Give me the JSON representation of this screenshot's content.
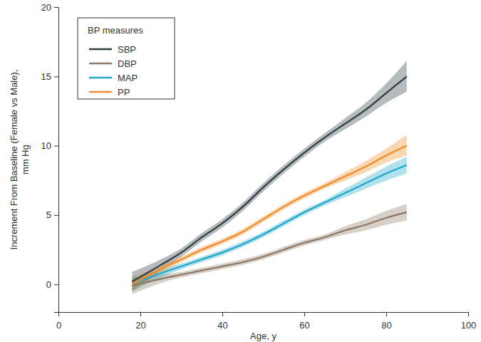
{
  "chart_data": {
    "type": "line",
    "xlabel": "Age, y",
    "ylabel": [
      "Increment From Baseline (Female vs Male),",
      "mm Hg"
    ],
    "legend_title": "BP measures",
    "legend": "upper left",
    "grid": false,
    "x": [
      18,
      25,
      30,
      35,
      40,
      45,
      50,
      55,
      60,
      65,
      70,
      75,
      80,
      85
    ],
    "series": [
      {
        "name": "SBP",
        "color": "#2d3d44",
        "values": [
          0.2,
          1.4,
          2.3,
          3.4,
          4.4,
          5.6,
          7.0,
          8.3,
          9.5,
          10.6,
          11.6,
          12.6,
          13.8,
          15.0
        ],
        "lower": [
          -0.5,
          1.0,
          2.0,
          3.1,
          4.1,
          5.3,
          6.7,
          8.0,
          9.2,
          10.3,
          11.2,
          12.1,
          13.1,
          13.9
        ],
        "upper": [
          0.9,
          1.8,
          2.6,
          3.7,
          4.7,
          5.9,
          7.3,
          8.6,
          9.8,
          10.9,
          12.0,
          13.1,
          14.5,
          16.1
        ]
      },
      {
        "name": "DBP",
        "color": "#8b7763",
        "values": [
          -0.1,
          0.4,
          0.7,
          1.0,
          1.3,
          1.6,
          2.0,
          2.5,
          3.0,
          3.4,
          3.9,
          4.3,
          4.8,
          5.2
        ],
        "lower": [
          -0.7,
          0.1,
          0.5,
          0.8,
          1.1,
          1.4,
          1.8,
          2.3,
          2.8,
          3.2,
          3.6,
          3.9,
          4.3,
          4.6
        ],
        "upper": [
          0.5,
          0.7,
          0.9,
          1.2,
          1.5,
          1.8,
          2.2,
          2.7,
          3.2,
          3.6,
          4.2,
          4.7,
          5.3,
          5.8
        ]
      },
      {
        "name": "MAP",
        "color": "#1ea5c9",
        "values": [
          0.0,
          0.8,
          1.3,
          1.8,
          2.3,
          2.9,
          3.6,
          4.4,
          5.2,
          5.9,
          6.6,
          7.3,
          8.0,
          8.6
        ],
        "lower": [
          -0.5,
          0.5,
          1.1,
          1.6,
          2.1,
          2.7,
          3.4,
          4.2,
          5.0,
          5.7,
          6.3,
          6.9,
          7.5,
          8.0
        ],
        "upper": [
          0.5,
          1.1,
          1.5,
          2.0,
          2.5,
          3.1,
          3.8,
          4.6,
          5.4,
          6.1,
          6.9,
          7.7,
          8.5,
          9.2
        ]
      },
      {
        "name": "PP",
        "color": "#f28b26",
        "values": [
          0.0,
          1.1,
          1.8,
          2.5,
          3.1,
          3.8,
          4.7,
          5.6,
          6.4,
          7.1,
          7.8,
          8.5,
          9.3,
          10.0
        ],
        "lower": [
          -0.5,
          0.8,
          1.6,
          2.3,
          2.9,
          3.6,
          4.5,
          5.4,
          6.2,
          6.9,
          7.5,
          8.1,
          8.8,
          9.3
        ],
        "upper": [
          0.5,
          1.4,
          2.0,
          2.7,
          3.3,
          4.0,
          4.9,
          5.8,
          6.6,
          7.3,
          8.1,
          8.9,
          9.8,
          10.8
        ]
      }
    ],
    "xlim": [
      0,
      100
    ],
    "xticks": [
      0,
      20,
      40,
      60,
      80,
      100
    ],
    "ylim": [
      -2,
      20
    ],
    "yticks": [
      0,
      5,
      10,
      15,
      20
    ]
  }
}
